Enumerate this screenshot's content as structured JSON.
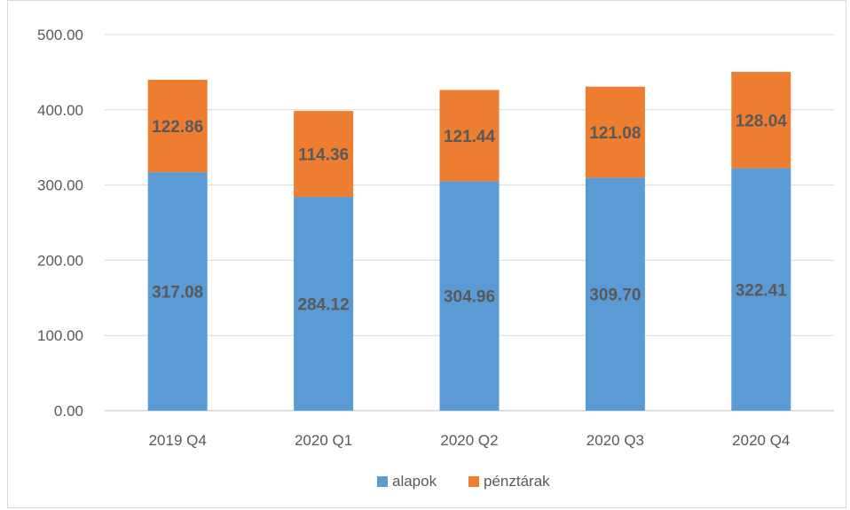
{
  "chart_data": {
    "type": "bar",
    "stacked": true,
    "categories": [
      "2019 Q4",
      "2020 Q1",
      "2020 Q2",
      "2020 Q3",
      "2020 Q4"
    ],
    "series": [
      {
        "name": "alapok",
        "values": [
          317.08,
          284.12,
          304.96,
          309.7,
          322.41
        ],
        "labels": [
          "317.08",
          "284.12",
          "304.96",
          "309.70",
          "322.41"
        ],
        "color": "#5b9bd5"
      },
      {
        "name": "pénztárak",
        "values": [
          122.86,
          114.36,
          121.44,
          121.08,
          128.04
        ],
        "labels": [
          "122.86",
          "114.36",
          "121.44",
          "121.08",
          "128.04"
        ],
        "color": "#ed7d31"
      }
    ],
    "ylim": [
      0,
      500
    ],
    "yticks": [
      "0.00",
      "100.00",
      "200.00",
      "300.00",
      "400.00",
      "500.00"
    ],
    "grid": true,
    "legend": "bottom"
  }
}
